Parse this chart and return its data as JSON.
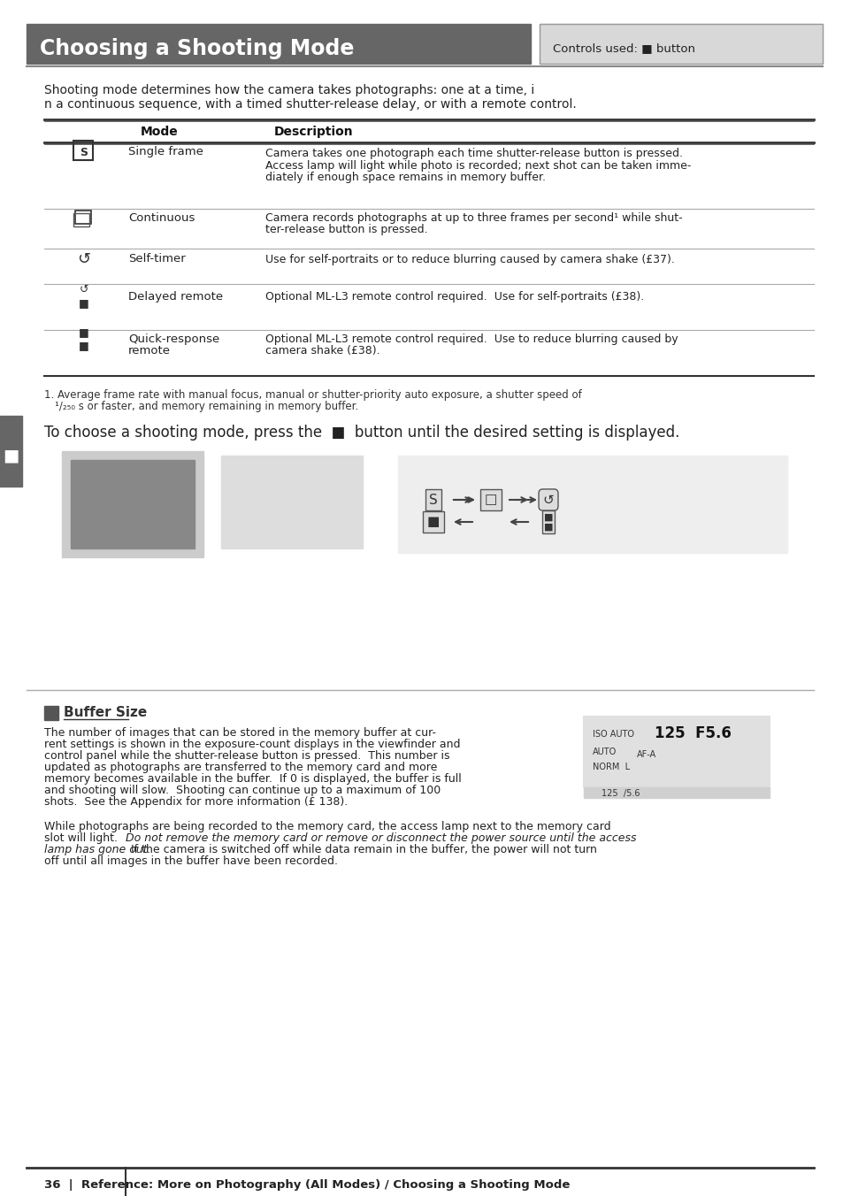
{
  "title": "Choosing a Shooting Mode",
  "controls_label": "Controls used:",
  "controls_button": "button",
  "bg_color": "#ffffff",
  "header_bg": "#666666",
  "header_text_color": "#ffffff",
  "controls_bg": "#e8e8e8",
  "intro_text": "Shooting mode determines how the camera takes photographs: one at a time, in a continuous sequence, with a timed shutter-release delay, or with a remote control.",
  "table_header_mode": "Mode",
  "table_header_desc": "Description",
  "modes": [
    {
      "icon": "S",
      "name": "Single frame",
      "desc": "Camera takes one photograph each time shutter-release button is pressed. Access lamp will light while photo is recorded; next shot can be taken immediately if enough space remains in memory buffer."
    },
    {
      "icon": "cont",
      "name": "Continuous",
      "desc": "Camera records photographs at up to three frames per second¹ while shutter-release button is pressed."
    },
    {
      "icon": "timer",
      "name": "Self-timer",
      "desc": "Use for self-portraits or to reduce blurring caused by camera shake (£37)."
    },
    {
      "icon": "delayed",
      "name": "Delayed remote",
      "desc": "Optional ML-L3 remote control required.  Use for self-portraits (£38)."
    },
    {
      "icon": "quick",
      "name": "Quick-response remote",
      "desc": "Optional ML-L3 remote control required.  Use to reduce blurring caused by camera shake (£38)."
    }
  ],
  "footnote": "1. Average frame rate with manual focus, manual or shutter-priority auto exposure, a shutter speed of ¹⁄₂₅₀ s or faster, and memory remaining in memory buffer.",
  "choose_text": "To choose a shooting mode, press the",
  "choose_text2": "button until the desired setting is displayed.",
  "buffer_title": "Buffer Size",
  "buffer_text1": "The number of images that can be stored in the memory buffer at current settings is shown in the exposure-count displays in the viewfinder and control panel while the shutter-release button is pressed.  This number is updated as photographs are transferred to the memory card and more memory becomes available in the buffer.  If 0 is displayed, the buffer is full and shooting will slow.  Shooting can continue up to a maximum of 100 shots.  See the Appendix for more information (£ 138).",
  "buffer_text2": "While photographs are being recorded to the memory card, the access lamp next to the memory card slot will light.  Do not remove the memory card or remove or disconnect the power source until the access lamp has gone out.  If the camera is switched off while data remain in the buffer, the power will not turn off until all images in the buffer have been recorded.",
  "footer_text": "36  |  Reference: More on Photography (All Modes) / Choosing a Shooting Mode",
  "side_tab_color": "#666666"
}
